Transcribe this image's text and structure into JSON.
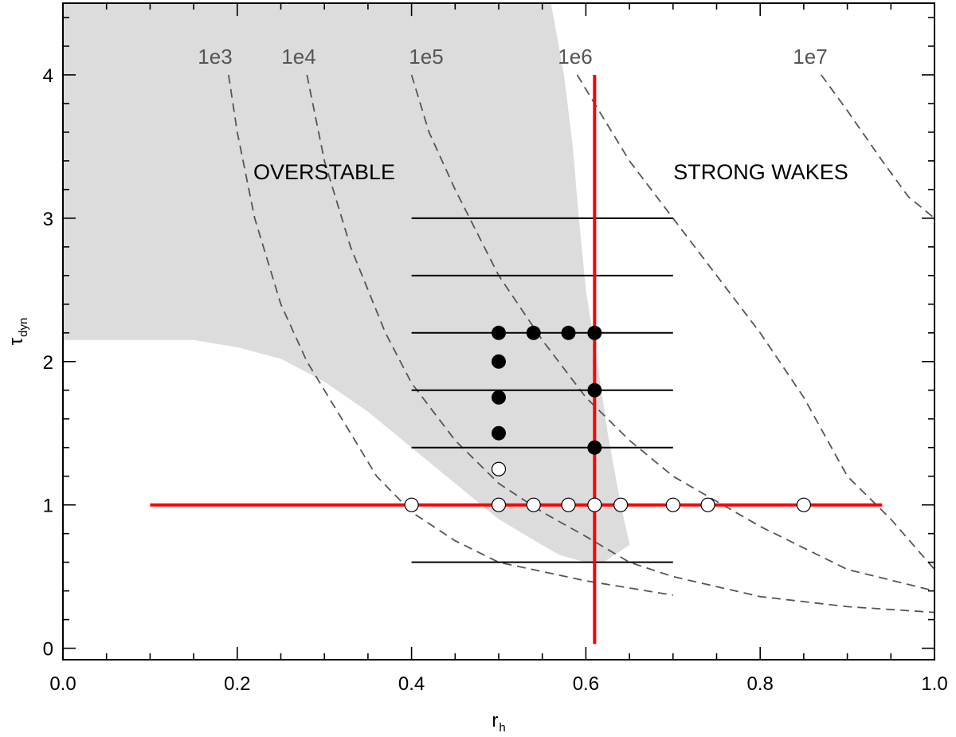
{
  "chart_data": {
    "type": "scatter",
    "title": "",
    "xlabel": "r",
    "xlabel_sub": "h",
    "ylabel": "τ",
    "ylabel_sub": "dyn",
    "xlim": [
      0.0,
      1.0
    ],
    "ylim": [
      -0.08,
      4.5
    ],
    "x_ticks": [
      "0.0",
      "0.2",
      "0.4",
      "0.6",
      "0.8",
      "1.0"
    ],
    "x_tick_values": [
      0.0,
      0.2,
      0.4,
      0.6,
      0.8,
      1.0
    ],
    "y_ticks": [
      "0",
      "1",
      "2",
      "3",
      "4"
    ],
    "y_tick_values": [
      0,
      1,
      2,
      3,
      4
    ],
    "grid": false,
    "colors": {
      "shaded_region": "#dcdcdc",
      "contour": "#555555",
      "red_lines": "#ff0000",
      "horizontal_lines": "#000000",
      "points_filled": "#000000",
      "points_open": "#000000"
    },
    "region_labels": {
      "overstable": "OVERSTABLE",
      "strong_wakes": "STRONG WAKES"
    },
    "overstable_region_boundary": [
      [
        0.0,
        4.5
      ],
      [
        0.56,
        4.5
      ],
      [
        0.575,
        4.0
      ],
      [
        0.585,
        3.5
      ],
      [
        0.592,
        3.0
      ],
      [
        0.6,
        2.5
      ],
      [
        0.613,
        2.0
      ],
      [
        0.625,
        1.5
      ],
      [
        0.64,
        1.0
      ],
      [
        0.65,
        0.73
      ],
      [
        0.65,
        0.72
      ],
      [
        0.62,
        0.6
      ],
      [
        0.6,
        0.6
      ],
      [
        0.57,
        0.65
      ],
      [
        0.55,
        0.72
      ],
      [
        0.5,
        0.9
      ],
      [
        0.45,
        1.15
      ],
      [
        0.4,
        1.4
      ],
      [
        0.35,
        1.65
      ],
      [
        0.3,
        1.86
      ],
      [
        0.25,
        2.02
      ],
      [
        0.2,
        2.1
      ],
      [
        0.15,
        2.15
      ],
      [
        0.0,
        2.15
      ]
    ],
    "contours": [
      {
        "label": "1e3",
        "points": [
          [
            0.19,
            4.0
          ],
          [
            0.2,
            3.6
          ],
          [
            0.22,
            3.0
          ],
          [
            0.25,
            2.4
          ],
          [
            0.28,
            2.0
          ],
          [
            0.32,
            1.6
          ],
          [
            0.36,
            1.2
          ],
          [
            0.4,
            0.95
          ],
          [
            0.45,
            0.75
          ],
          [
            0.5,
            0.6
          ],
          [
            0.6,
            0.47
          ],
          [
            0.7,
            0.37
          ]
        ]
      },
      {
        "label": "1e4",
        "points": [
          [
            0.28,
            4.0
          ],
          [
            0.3,
            3.4
          ],
          [
            0.33,
            2.8
          ],
          [
            0.37,
            2.2
          ],
          [
            0.4,
            1.85
          ],
          [
            0.45,
            1.45
          ],
          [
            0.5,
            1.15
          ],
          [
            0.55,
            0.95
          ],
          [
            0.6,
            0.78
          ],
          [
            0.65,
            0.6
          ],
          [
            0.7,
            0.5
          ],
          [
            0.8,
            0.36
          ],
          [
            0.9,
            0.29
          ],
          [
            1.0,
            0.25
          ]
        ]
      },
      {
        "label": "1e5",
        "points": [
          [
            0.4,
            4.0
          ],
          [
            0.42,
            3.6
          ],
          [
            0.45,
            3.2
          ],
          [
            0.5,
            2.6
          ],
          [
            0.55,
            2.15
          ],
          [
            0.6,
            1.75
          ],
          [
            0.65,
            1.45
          ],
          [
            0.7,
            1.2
          ],
          [
            0.8,
            0.85
          ],
          [
            0.9,
            0.55
          ],
          [
            1.0,
            0.4
          ]
        ]
      },
      {
        "label": "1e6",
        "points": [
          [
            0.59,
            4.0
          ],
          [
            0.61,
            3.8
          ],
          [
            0.65,
            3.4
          ],
          [
            0.7,
            3.0
          ],
          [
            0.75,
            2.6
          ],
          [
            0.8,
            2.2
          ],
          [
            0.85,
            1.75
          ],
          [
            0.9,
            1.2
          ],
          [
            0.95,
            0.9
          ],
          [
            1.0,
            0.55
          ]
        ]
      },
      {
        "label": "1e7",
        "points": [
          [
            0.87,
            4.0
          ],
          [
            0.9,
            3.75
          ],
          [
            0.94,
            3.4
          ],
          [
            0.97,
            3.15
          ],
          [
            1.0,
            3.0
          ]
        ]
      }
    ],
    "contour_label_positions": [
      {
        "label": "1e3",
        "x": 0.18,
        "y": 4.2
      },
      {
        "label": "1e4",
        "x": 0.27,
        "y": 4.2
      },
      {
        "label": "1e5",
        "x": 0.42,
        "y": 4.2
      },
      {
        "label": "1e6",
        "x": 0.59,
        "y": 4.2
      },
      {
        "label": "1e7",
        "x": 0.86,
        "y": 4.2
      }
    ],
    "red_lines": [
      {
        "x": [
          0.1,
          0.94
        ],
        "y": [
          1.0,
          1.0
        ]
      },
      {
        "x": [
          0.61,
          0.61
        ],
        "y": [
          0.03,
          4.0
        ]
      }
    ],
    "horizontal_lines": [
      {
        "x": [
          0.4,
          0.7
        ],
        "y": 3.0
      },
      {
        "x": [
          0.4,
          0.7
        ],
        "y": 2.6
      },
      {
        "x": [
          0.4,
          0.7
        ],
        "y": 2.2
      },
      {
        "x": [
          0.4,
          0.7
        ],
        "y": 1.8
      },
      {
        "x": [
          0.4,
          0.7
        ],
        "y": 1.4
      },
      {
        "x": [
          0.4,
          0.7
        ],
        "y": 0.6
      }
    ],
    "series": [
      {
        "marker": "filled",
        "points": [
          [
            0.5,
            2.2
          ],
          [
            0.54,
            2.2
          ],
          [
            0.58,
            2.2
          ],
          [
            0.61,
            2.2
          ],
          [
            0.5,
            2.0
          ],
          [
            0.5,
            1.75
          ],
          [
            0.5,
            1.5
          ],
          [
            0.61,
            1.8
          ],
          [
            0.61,
            1.4
          ]
        ]
      },
      {
        "marker": "open",
        "points": [
          [
            0.5,
            1.25
          ],
          [
            0.4,
            1.0
          ],
          [
            0.5,
            1.0
          ],
          [
            0.54,
            1.0
          ],
          [
            0.58,
            1.0
          ],
          [
            0.61,
            1.0
          ],
          [
            0.64,
            1.0
          ],
          [
            0.7,
            1.0
          ],
          [
            0.74,
            1.0
          ],
          [
            0.85,
            1.0
          ]
        ]
      }
    ]
  }
}
